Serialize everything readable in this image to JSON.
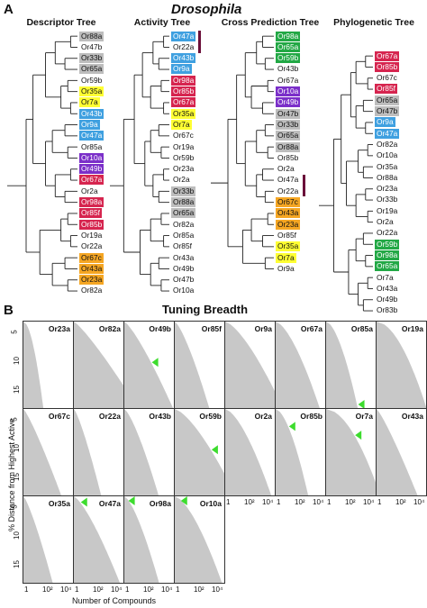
{
  "panel_a": {
    "letter": "A",
    "title": "Drosophila",
    "trees": [
      {
        "title": "Descriptor Tree",
        "leaves": [
          {
            "label": "Or88a",
            "color": "#bdbdbd"
          },
          {
            "label": "Or47b",
            "color": ""
          },
          {
            "label": "Or33b",
            "color": "#bdbdbd"
          },
          {
            "label": "Or65a",
            "color": "#bdbdbd"
          },
          {
            "label": "Or59b",
            "color": ""
          },
          {
            "label": "Or35a",
            "color": "#ffff33"
          },
          {
            "label": "Or7a",
            "color": "#ffff33"
          },
          {
            "label": "Or43b",
            "color": "#3fa0e0"
          },
          {
            "label": "Or9a",
            "color": "#3fa0e0"
          },
          {
            "label": "Or47a",
            "color": "#3fa0e0"
          },
          {
            "label": "Or85a",
            "color": ""
          },
          {
            "label": "Or10a",
            "color": "#7b2fc9"
          },
          {
            "label": "Or49b",
            "color": "#7b2fc9"
          },
          {
            "label": "Or67a",
            "color": "#d6254f"
          },
          {
            "label": "Or2a",
            "color": ""
          },
          {
            "label": "Or98a",
            "color": "#d6254f"
          },
          {
            "label": "Or85f",
            "color": "#d6254f"
          },
          {
            "label": "Or85b",
            "color": "#d6254f"
          },
          {
            "label": "Or19a",
            "color": ""
          },
          {
            "label": "Or22a",
            "color": ""
          },
          {
            "label": "Or67c",
            "color": "#f5a623"
          },
          {
            "label": "Or43a",
            "color": "#f5a623"
          },
          {
            "label": "Or23a",
            "color": "#f5a623"
          },
          {
            "label": "Or82a",
            "color": ""
          }
        ],
        "has_bar": false
      },
      {
        "title": "Activity Tree",
        "leaves": [
          {
            "label": "Or47a",
            "color": "#3fa0e0"
          },
          {
            "label": "Or22a",
            "color": ""
          },
          {
            "label": "Or43b",
            "color": "#3fa0e0"
          },
          {
            "label": "Or9a",
            "color": "#3fa0e0"
          },
          {
            "label": "Or98a",
            "color": "#d6254f"
          },
          {
            "label": "Or85b",
            "color": "#d6254f"
          },
          {
            "label": "Or67a",
            "color": "#d6254f"
          },
          {
            "label": "Or35a",
            "color": "#ffff33"
          },
          {
            "label": "Or7a",
            "color": "#ffff33"
          },
          {
            "label": "Or67c",
            "color": ""
          },
          {
            "label": "Or19a",
            "color": ""
          },
          {
            "label": "Or59b",
            "color": ""
          },
          {
            "label": "Or23a",
            "color": ""
          },
          {
            "label": "Or2a",
            "color": ""
          },
          {
            "label": "Or33b",
            "color": "#bdbdbd"
          },
          {
            "label": "Or88a",
            "color": "#bdbdbd"
          },
          {
            "label": "Or65a",
            "color": "#bdbdbd"
          },
          {
            "label": "Or82a",
            "color": ""
          },
          {
            "label": "Or85a",
            "color": ""
          },
          {
            "label": "Or85f",
            "color": ""
          },
          {
            "label": "Or43a",
            "color": ""
          },
          {
            "label": "Or49b",
            "color": ""
          },
          {
            "label": "Or47b",
            "color": ""
          },
          {
            "label": "Or10a",
            "color": ""
          }
        ],
        "has_bar": true
      },
      {
        "title": "Cross Prediction Tree",
        "leaves": [
          {
            "label": "Or98a",
            "color": "#22a845"
          },
          {
            "label": "Or65a",
            "color": "#22a845"
          },
          {
            "label": "Or59b",
            "color": "#22a845"
          },
          {
            "label": "Or43b",
            "color": ""
          },
          {
            "label": "Or67a",
            "color": ""
          },
          {
            "label": "Or10a",
            "color": "#7b2fc9"
          },
          {
            "label": "Or49b",
            "color": "#7b2fc9"
          },
          {
            "label": "Or47b",
            "color": "#bdbdbd"
          },
          {
            "label": "Or33b",
            "color": "#bdbdbd"
          },
          {
            "label": "Or65a",
            "color": "#bdbdbd"
          },
          {
            "label": "Or88a",
            "color": "#bdbdbd"
          },
          {
            "label": "Or85b",
            "color": ""
          },
          {
            "label": "Or2a",
            "color": ""
          },
          {
            "label": "Or47a",
            "color": ""
          },
          {
            "label": "Or22a",
            "color": ""
          },
          {
            "label": "Or67c",
            "color": "#f5a623"
          },
          {
            "label": "Or43a",
            "color": "#f5a623"
          },
          {
            "label": "Or23a",
            "color": "#f5a623"
          },
          {
            "label": "Or85f",
            "color": ""
          },
          {
            "label": "Or35a",
            "color": "#ffff33"
          },
          {
            "label": "Or7a",
            "color": "#ffff33"
          },
          {
            "label": "Or9a",
            "color": ""
          }
        ],
        "has_bar": true
      },
      {
        "title": "Phylogenetic Tree",
        "leaves": [
          {
            "label": "Or67a",
            "color": "#d6254f"
          },
          {
            "label": "Or85b",
            "color": "#d6254f"
          },
          {
            "label": "Or67c",
            "color": ""
          },
          {
            "label": "Or85f",
            "color": "#d6254f"
          },
          {
            "label": "Or65a",
            "color": "#bdbdbd"
          },
          {
            "label": "Or47b",
            "color": "#bdbdbd"
          },
          {
            "label": "Or9a",
            "color": "#3fa0e0"
          },
          {
            "label": "Or47a",
            "color": "#3fa0e0"
          },
          {
            "label": "Or82a",
            "color": ""
          },
          {
            "label": "Or10a",
            "color": ""
          },
          {
            "label": "Or35a",
            "color": ""
          },
          {
            "label": "Or88a",
            "color": ""
          },
          {
            "label": "Or23a",
            "color": ""
          },
          {
            "label": "Or33b",
            "color": ""
          },
          {
            "label": "Or19a",
            "color": ""
          },
          {
            "label": "Or2a",
            "color": ""
          },
          {
            "label": "Or22a",
            "color": ""
          },
          {
            "label": "Or59b",
            "color": "#22a845"
          },
          {
            "label": "Or98a",
            "color": "#22a845"
          },
          {
            "label": "Or65a",
            "color": "#22a845"
          },
          {
            "label": "Or7a",
            "color": ""
          },
          {
            "label": "Or43a",
            "color": ""
          },
          {
            "label": "Or49b",
            "color": ""
          },
          {
            "label": "Or83b",
            "color": ""
          }
        ],
        "has_bar": false
      }
    ]
  },
  "panel_b": {
    "letter": "B",
    "title": "Tuning Breadth",
    "y_axis_title": "% Distance from Highest Active",
    "x_axis_title": "Number of Compounds",
    "y_ticks": [
      "5",
      "10",
      "15"
    ],
    "x_ticks": [
      "1",
      "10²",
      "10⁴"
    ],
    "rows": [
      [
        "Or23a",
        "Or82a",
        "Or49b",
        "Or85f",
        "Or9a",
        "Or67a",
        "Or85a",
        "Or19a"
      ],
      [
        "Or67c",
        "Or22a",
        "Or43b",
        "Or59b",
        "Or2a",
        "Or85b",
        "Or7a",
        "Or43a"
      ],
      [
        "Or35a",
        "Or47a",
        "Or98a",
        "Or10a"
      ]
    ],
    "markers": {
      "Or49b": 0.45,
      "Or85a": 0.98,
      "Or59b": 0.45,
      "Or85b": 0.2,
      "Or7a": 0.3,
      "Or47a": 0.08,
      "Or98a": 0.02,
      "Or10a": 0.02
    },
    "colors": {
      "fill": "#c8c8c8",
      "marker": "#3ddc2e"
    }
  }
}
